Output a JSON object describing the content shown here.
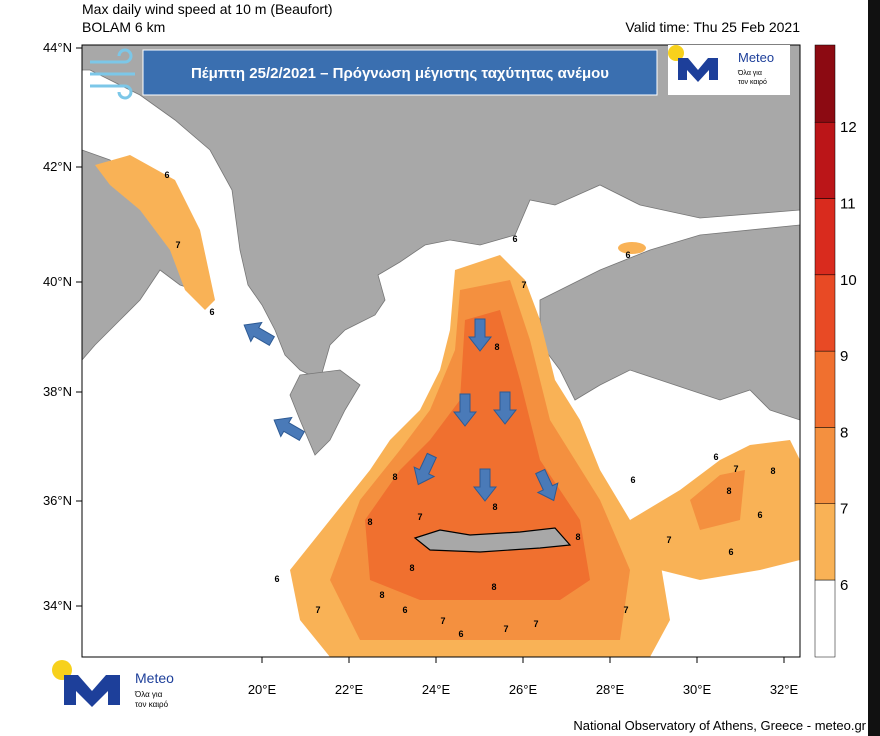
{
  "header": {
    "title": "Max daily wind speed at 10 m (Beaufort)",
    "model": "BOLAM 6 km",
    "valid_time": "Valid time: Thu 25 Feb 2021"
  },
  "banner": {
    "text": "Πέμπτη 25/2/2021 – Πρόγνωση μέγιστης ταχύτητας ανέμου"
  },
  "top_logo": {
    "name": "Meteo",
    "tagline_lines": [
      "Όλα για",
      "τον καιρό"
    ]
  },
  "bottom_logo": {
    "name": "Meteo",
    "tagline_lines": [
      "Όλα για",
      "τον καιρό"
    ]
  },
  "map": {
    "latitudes": [
      "44°N",
      "42°N",
      "40°N",
      "38°N",
      "36°N",
      "34°N"
    ],
    "longitudes": [
      "20°E",
      "22°E",
      "24°E",
      "26°E",
      "28°E",
      "30°E",
      "32°E"
    ],
    "contour_labels": [
      6,
      7,
      6,
      6,
      6,
      7,
      8,
      6,
      7,
      8,
      8,
      6,
      7,
      6,
      8,
      8,
      8,
      6,
      7,
      6,
      7,
      6,
      8,
      7,
      7,
      8,
      7,
      6,
      8,
      7,
      8
    ]
  },
  "colorbar": {
    "levels": [
      6,
      7,
      8,
      9,
      10,
      11,
      12
    ],
    "colors": [
      "#ffffff",
      "#f9b256",
      "#f4903f",
      "#f0702f",
      "#e84a25",
      "#d92b1e",
      "#bb1518",
      "#8c0a12"
    ]
  },
  "footer": {
    "credit": "National Observatory of Athens, Greece - meteo.gr"
  }
}
